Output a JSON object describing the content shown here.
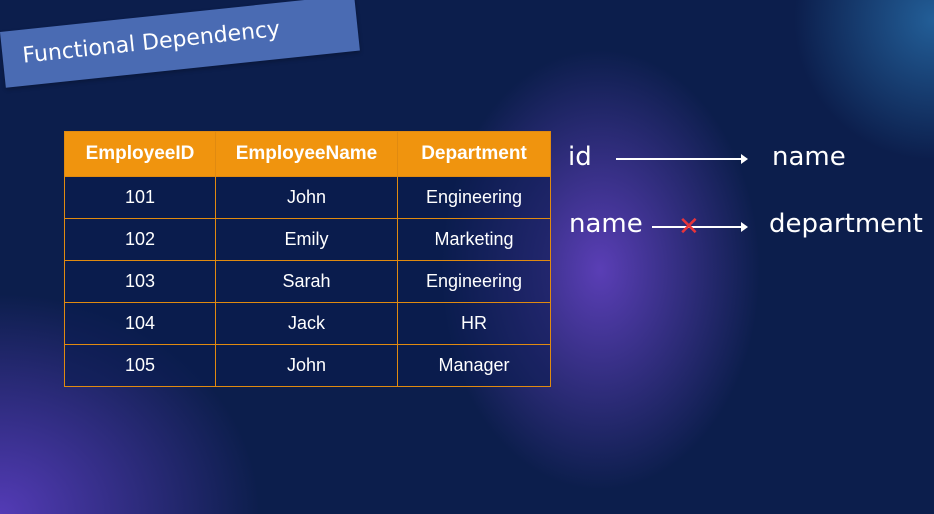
{
  "title": "Functional Dependency",
  "table": {
    "headers": [
      "EmployeeID",
      "EmployeeName",
      "Department"
    ],
    "rows": [
      [
        "101",
        "John",
        "Engineering"
      ],
      [
        "102",
        "Emily",
        "Marketing"
      ],
      [
        "103",
        "Sarah",
        "Engineering"
      ],
      [
        "104",
        "Jack",
        "HR"
      ],
      [
        "105",
        "John",
        "Manager"
      ]
    ]
  },
  "dependencies": [
    {
      "from": "id",
      "to": "name",
      "valid": true
    },
    {
      "from": "name",
      "to": "department",
      "valid": false,
      "marker": "✕"
    }
  ],
  "colors": {
    "background": "#0c1e4c",
    "header": "#f0940e",
    "banner": "#4a6bb3",
    "invalid": "#e8343a"
  }
}
